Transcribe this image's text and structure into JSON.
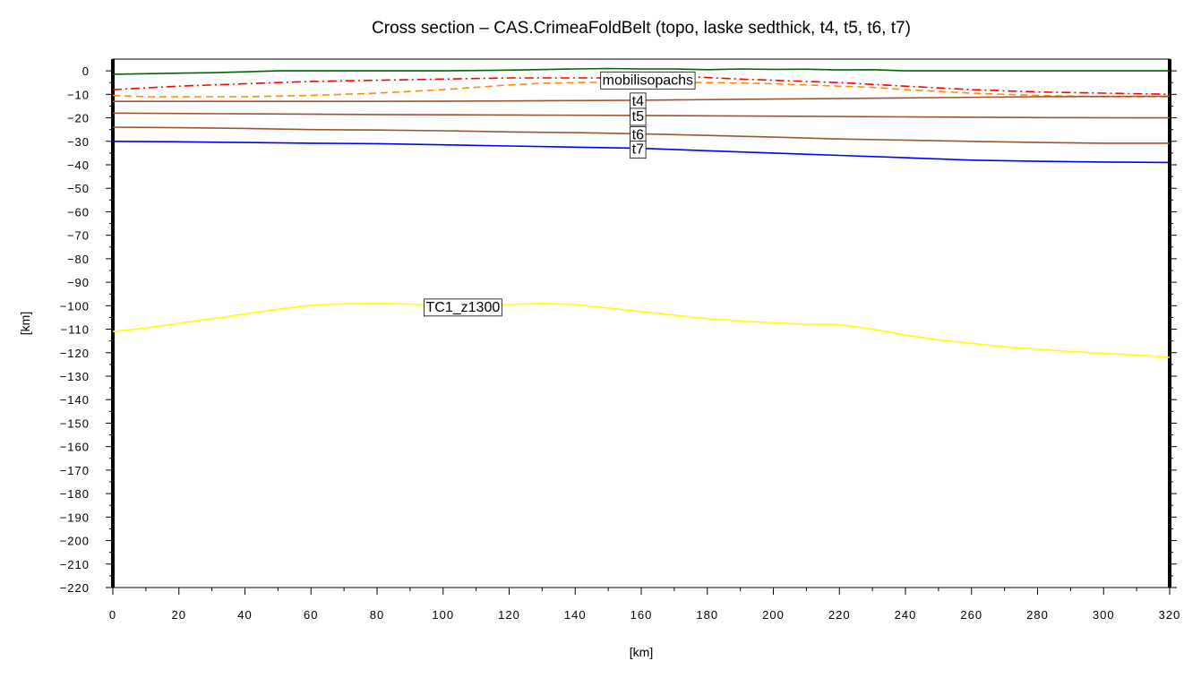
{
  "chart_data": {
    "type": "line",
    "title": "Cross section – CAS.CrimeaFoldBelt (topo, laske sedthick, t4, t5, t6, t7)",
    "xlabel": "[km]",
    "ylabel": "[km]",
    "xlim": [
      0,
      320
    ],
    "ylim": [
      -220,
      5
    ],
    "xticks": [
      0,
      20,
      40,
      60,
      80,
      100,
      120,
      140,
      160,
      180,
      200,
      220,
      240,
      260,
      280,
      300,
      320
    ],
    "yticks": [
      0,
      -10,
      -20,
      -30,
      -40,
      -50,
      -60,
      -70,
      -80,
      -90,
      -100,
      -110,
      -120,
      -130,
      -140,
      -150,
      -160,
      -170,
      -180,
      -190,
      -200,
      -210,
      -220
    ],
    "grid": false,
    "series": [
      {
        "color": "#006400",
        "dash": "solid",
        "x": [
          0,
          10,
          20,
          30,
          40,
          50,
          60,
          80,
          100,
          120,
          140,
          150,
          160,
          170,
          180,
          190,
          200,
          210,
          220,
          230,
          240,
          260,
          280,
          300,
          320
        ],
        "y": [
          -1.5,
          -1.2,
          -1,
          -0.8,
          -0.4,
          0,
          0,
          0,
          0,
          0.3,
          0.8,
          1,
          0.8,
          0.8,
          0.5,
          0.8,
          0.6,
          0.7,
          0.4,
          0.5,
          0,
          0,
          0,
          0,
          0
        ]
      },
      {
        "name": "mobilisopachs",
        "color": "#ff0000",
        "dash": "dashdot",
        "x": [
          0,
          20,
          40,
          60,
          80,
          100,
          120,
          140,
          160,
          175,
          190,
          200,
          220,
          240,
          260,
          280,
          300,
          320
        ],
        "y": [
          -8,
          -6.5,
          -5.5,
          -4.5,
          -4,
          -3.5,
          -3,
          -3,
          -3,
          -2.5,
          -3.5,
          -4,
          -5,
          -6.5,
          -8,
          -9,
          -9.5,
          -10
        ]
      },
      {
        "color": "#ff8c00",
        "dash": "dashed",
        "x": [
          0,
          10,
          20,
          40,
          60,
          80,
          100,
          110,
          120,
          130,
          140,
          150,
          160,
          170,
          180,
          190,
          200,
          210,
          220,
          230,
          240,
          260,
          280,
          300,
          320
        ],
        "y": [
          -10.5,
          -11,
          -11,
          -11,
          -10.5,
          -9.5,
          -8,
          -7,
          -6,
          -5.3,
          -5,
          -4.8,
          -4.8,
          -4.9,
          -5,
          -5.2,
          -5.5,
          -6,
          -6.5,
          -7,
          -8,
          -9.5,
          -10.5,
          -11,
          -11
        ]
      },
      {
        "name": "t4",
        "color": "#a0522d",
        "dash": "solid",
        "x": [
          0,
          40,
          80,
          120,
          160,
          200,
          240,
          280,
          320
        ],
        "y": [
          -13,
          -13,
          -13,
          -12.8,
          -12.5,
          -12,
          -11.5,
          -11,
          -10.8
        ]
      },
      {
        "name": "t5",
        "color": "#a0522d",
        "dash": "solid",
        "x": [
          0,
          40,
          80,
          120,
          160,
          200,
          240,
          280,
          320
        ],
        "y": [
          -18,
          -18.3,
          -18.6,
          -18.8,
          -19,
          -19.3,
          -19.6,
          -19.9,
          -20
        ]
      },
      {
        "name": "t6",
        "color": "#a0522d",
        "dash": "solid",
        "x": [
          0,
          20,
          40,
          60,
          80,
          100,
          120,
          140,
          160,
          180,
          200,
          220,
          240,
          260,
          280,
          300,
          320
        ],
        "y": [
          -24,
          -24.2,
          -24.5,
          -25,
          -25.2,
          -25.5,
          -26,
          -26.3,
          -26.8,
          -27.5,
          -28.2,
          -29,
          -29.5,
          -30,
          -30.5,
          -30.8,
          -30.8
        ]
      },
      {
        "name": "t7",
        "color": "#0000ff",
        "dash": "solid",
        "x": [
          0,
          20,
          40,
          60,
          80,
          100,
          120,
          140,
          160,
          180,
          200,
          220,
          240,
          260,
          280,
          300,
          320
        ],
        "y": [
          -30,
          -30.2,
          -30.5,
          -30.8,
          -31,
          -31.5,
          -32,
          -32.5,
          -33,
          -34,
          -35,
          -36,
          -37,
          -38,
          -38.5,
          -38.8,
          -39
        ]
      },
      {
        "name": "TC1_z1300",
        "color": "#ffff00",
        "dash": "solid",
        "x": [
          0,
          10,
          20,
          30,
          40,
          50,
          60,
          70,
          80,
          90,
          100,
          110,
          120,
          130,
          140,
          150,
          160,
          170,
          180,
          190,
          200,
          210,
          220,
          230,
          240,
          250,
          260,
          270,
          280,
          290,
          300,
          310,
          320
        ],
        "y": [
          -111,
          -109.5,
          -107.5,
          -105.5,
          -103.5,
          -101.5,
          -99.8,
          -99.2,
          -99,
          -99.3,
          -99.8,
          -100,
          -99.5,
          -99,
          -99.5,
          -101,
          -102.5,
          -104,
          -105.5,
          -106.5,
          -107.3,
          -107.8,
          -108,
          -110,
          -112.5,
          -114.5,
          -116,
          -117.5,
          -118.5,
          -119.5,
          -120.3,
          -121,
          -122
        ]
      }
    ],
    "annotations": [
      {
        "text": "mobilisopachs",
        "x": 162,
        "y": -3.5
      },
      {
        "text": "t4",
        "x": 159,
        "y": -12.5
      },
      {
        "text": "t5",
        "x": 159,
        "y": -19
      },
      {
        "text": "t6",
        "x": 159,
        "y": -26.8
      },
      {
        "text": "t7",
        "x": 159,
        "y": -33
      },
      {
        "text": "TC1_z1300",
        "x": 106,
        "y": -100.2
      }
    ]
  }
}
